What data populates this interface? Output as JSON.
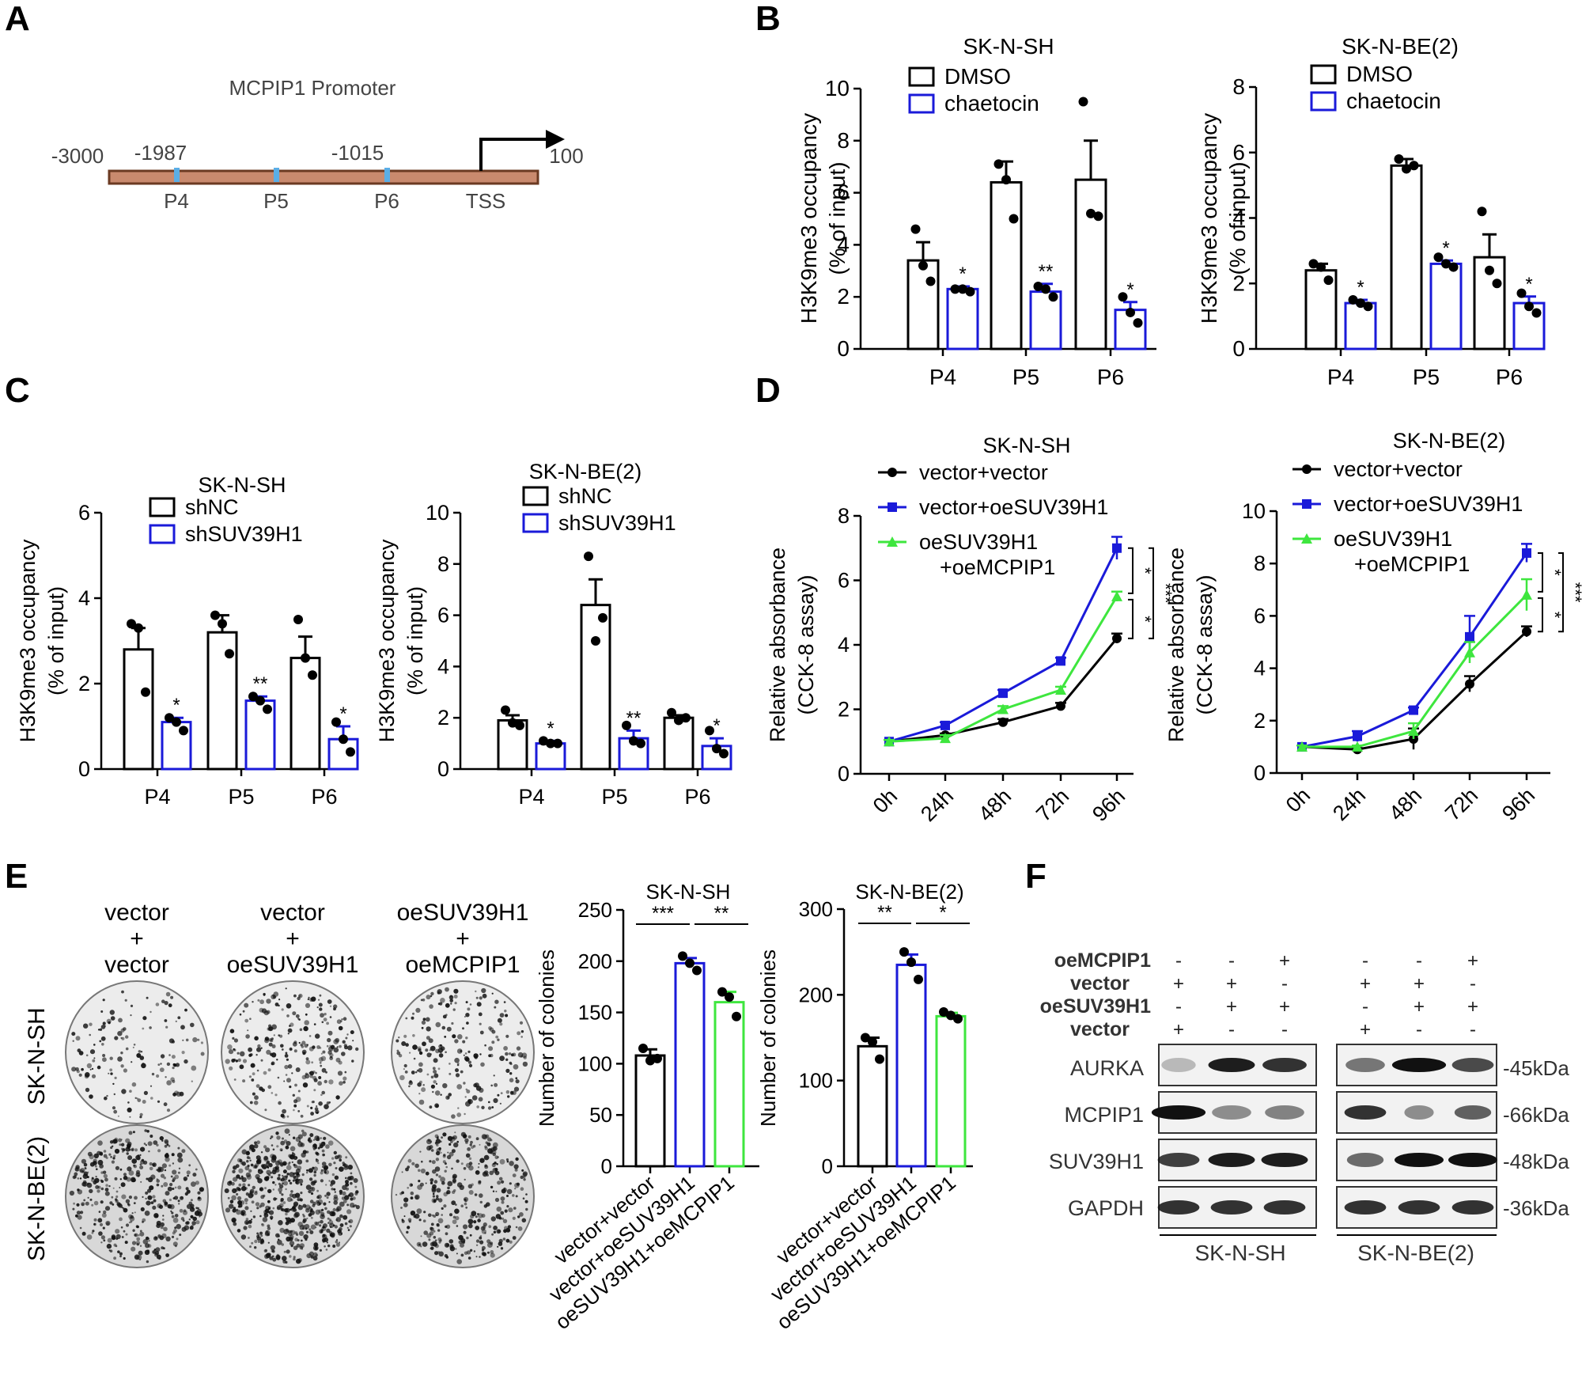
{
  "figure": {
    "panel_labels": [
      "A",
      "B",
      "C",
      "D",
      "E",
      "F"
    ]
  },
  "promoter": {
    "title": "MCPIP1 Promoter",
    "positions": [
      "-3000",
      "-1987",
      "-1015",
      "100"
    ],
    "sites": [
      "P4",
      "P5",
      "P6",
      "TSS"
    ]
  },
  "colors": {
    "black": "#000000",
    "blue": "#1a1ad9",
    "green": "#3ee63e",
    "site": "#5aaee6",
    "promoter_line": "#a0522d"
  },
  "colonies": {
    "col_labels": [
      [
        "vector",
        "+",
        "vector"
      ],
      [
        "vector",
        "+",
        "oeSUV39H1"
      ],
      [
        "oeSUV39H1",
        "+",
        "oeMCPIP1"
      ]
    ],
    "row_labels": [
      "SK-N-SH",
      "SK-N-BE(2)"
    ]
  },
  "western": {
    "condition_labels": [
      "oeMCPIP1",
      "vector",
      "oeSUV39H1",
      "vector"
    ],
    "signs": [
      [
        "-",
        "-",
        "+",
        "-",
        "-",
        "+"
      ],
      [
        "+",
        "+",
        "-",
        "+",
        "+",
        "-"
      ],
      [
        "-",
        "+",
        "+",
        "-",
        "+",
        "+"
      ],
      [
        "+",
        "-",
        "-",
        "+",
        "-",
        "-"
      ]
    ],
    "proteins": [
      "AURKA",
      "MCPIP1",
      "SUV39H1",
      "GAPDH"
    ],
    "sizes": [
      "-45kDa",
      "-66kDa",
      "-48kDa",
      "-36kDa"
    ],
    "cell_lines": [
      "SK-N-SH",
      "SK-N-BE(2)"
    ]
  },
  "chart_data": [
    {
      "id": "B-left",
      "type": "bar",
      "title": "SK-N-SH",
      "categories": [
        "P4",
        "P5",
        "P6"
      ],
      "ylabel": [
        "H3K9me3 occupancy",
        "(% of input)"
      ],
      "ylim": [
        0,
        10
      ],
      "yticks": [
        0,
        2,
        4,
        6,
        8,
        10
      ],
      "series": [
        {
          "name": "DMSO",
          "color": "#000000",
          "values": [
            3.4,
            6.4,
            6.5
          ],
          "err": [
            0.7,
            0.8,
            1.5
          ],
          "points": [
            [
              4.6,
              3.2,
              2.6
            ],
            [
              7.1,
              6.5,
              5.0
            ],
            [
              9.5,
              5.2,
              5.1
            ]
          ]
        },
        {
          "name": "chaetocin",
          "color": "#1a1ad9",
          "values": [
            2.3,
            2.2,
            1.5
          ],
          "err": [
            0.1,
            0.3,
            0.3
          ],
          "points": [
            [
              2.3,
              2.3,
              2.2
            ],
            [
              2.4,
              2.3,
              2.0
            ],
            [
              2.0,
              1.4,
              1.0
            ]
          ]
        }
      ],
      "sig": [
        {
          "series": 1,
          "cat": 0,
          "text": "*"
        },
        {
          "series": 1,
          "cat": 1,
          "text": "**"
        },
        {
          "series": 1,
          "cat": 2,
          "text": "*"
        }
      ],
      "legend": "top-left"
    },
    {
      "id": "B-right",
      "type": "bar",
      "title": "SK-N-BE(2)",
      "categories": [
        "P4",
        "P5",
        "P6"
      ],
      "ylabel": [
        "H3K9me3 occupancy",
        "(% of input)"
      ],
      "ylim": [
        0,
        8
      ],
      "yticks": [
        0,
        2,
        4,
        6,
        8
      ],
      "series": [
        {
          "name": "DMSO",
          "color": "#000000",
          "values": [
            2.4,
            5.6,
            2.8
          ],
          "err": [
            0.2,
            0.2,
            0.7
          ],
          "points": [
            [
              2.6,
              2.5,
              2.1
            ],
            [
              5.8,
              5.5,
              5.6
            ],
            [
              4.2,
              2.4,
              2.0
            ]
          ]
        },
        {
          "name": "chaetocin",
          "color": "#1a1ad9",
          "values": [
            1.4,
            2.6,
            1.4
          ],
          "err": [
            0.1,
            0.1,
            0.2
          ],
          "points": [
            [
              1.5,
              1.4,
              1.3
            ],
            [
              2.8,
              2.6,
              2.5
            ],
            [
              1.7,
              1.3,
              1.1
            ]
          ]
        }
      ],
      "sig": [
        {
          "series": 1,
          "cat": 0,
          "text": "*"
        },
        {
          "series": 1,
          "cat": 1,
          "text": "*"
        },
        {
          "series": 1,
          "cat": 2,
          "text": "*"
        }
      ],
      "legend": "top-left"
    },
    {
      "id": "C-left",
      "type": "bar",
      "title": "SK-N-SH",
      "categories": [
        "P4",
        "P5",
        "P6"
      ],
      "ylabel": [
        "H3K9me3 occupancy",
        "(% of input)"
      ],
      "ylim": [
        0,
        6
      ],
      "yticks": [
        0,
        2,
        4,
        6
      ],
      "series": [
        {
          "name": "shNC",
          "color": "#000000",
          "values": [
            2.8,
            3.2,
            2.6
          ],
          "err": [
            0.5,
            0.4,
            0.5
          ],
          "points": [
            [
              3.4,
              3.3,
              1.8
            ],
            [
              3.6,
              3.4,
              2.7
            ],
            [
              3.5,
              2.6,
              2.2
            ]
          ]
        },
        {
          "name": "shSUV39H1",
          "color": "#1a1ad9",
          "values": [
            1.1,
            1.6,
            0.7
          ],
          "err": [
            0.1,
            0.1,
            0.3
          ],
          "points": [
            [
              1.2,
              1.1,
              0.9
            ],
            [
              1.7,
              1.6,
              1.4
            ],
            [
              1.1,
              0.7,
              0.4
            ]
          ]
        }
      ],
      "sig": [
        {
          "series": 1,
          "cat": 0,
          "text": "*"
        },
        {
          "series": 1,
          "cat": 1,
          "text": "**"
        },
        {
          "series": 1,
          "cat": 2,
          "text": "*"
        }
      ],
      "legend": "top-left"
    },
    {
      "id": "C-right",
      "type": "bar",
      "title": "SK-N-BE(2)",
      "categories": [
        "P4",
        "P5",
        "P6"
      ],
      "ylabel": [
        "H3K9me3 occupancy",
        "(% of input)"
      ],
      "ylim": [
        0,
        10
      ],
      "yticks": [
        0,
        2,
        4,
        6,
        8,
        10
      ],
      "series": [
        {
          "name": "shNC",
          "color": "#000000",
          "values": [
            1.9,
            6.4,
            2.0
          ],
          "err": [
            0.2,
            1.0,
            0.1
          ],
          "points": [
            [
              2.3,
              1.8,
              1.7
            ],
            [
              8.3,
              5.0,
              5.9
            ],
            [
              2.2,
              1.9,
              2.0
            ]
          ]
        },
        {
          "name": "shSUV39H1",
          "color": "#1a1ad9",
          "values": [
            1.0,
            1.2,
            0.9
          ],
          "err": [
            0.1,
            0.3,
            0.3
          ],
          "points": [
            [
              1.1,
              1.0,
              1.0
            ],
            [
              1.7,
              1.1,
              1.0
            ],
            [
              1.5,
              0.8,
              0.6
            ]
          ]
        }
      ],
      "sig": [
        {
          "series": 1,
          "cat": 0,
          "text": "*"
        },
        {
          "series": 1,
          "cat": 1,
          "text": "**"
        },
        {
          "series": 1,
          "cat": 2,
          "text": "*"
        }
      ],
      "legend": "top-left"
    },
    {
      "id": "D-left",
      "type": "line",
      "title": "SK-N-SH",
      "x": [
        "0h",
        "24h",
        "48h",
        "72h",
        "96h"
      ],
      "ylabel": [
        "Relative absorbance",
        "(CCK-8 assay)"
      ],
      "ylim": [
        0,
        8
      ],
      "yticks": [
        0,
        2,
        4,
        6,
        8
      ],
      "series": [
        {
          "name": "vector+vector",
          "color": "#000000",
          "marker": "circle",
          "values": [
            1.0,
            1.2,
            1.6,
            2.1,
            4.2
          ],
          "err": [
            0.05,
            0.05,
            0.1,
            0.1,
            0.15
          ]
        },
        {
          "name": "vector+oeSUV39H1",
          "color": "#1a1ad9",
          "marker": "square",
          "values": [
            1.0,
            1.5,
            2.5,
            3.5,
            7.0
          ],
          "err": [
            0.05,
            0.1,
            0.1,
            0.1,
            0.35
          ]
        },
        {
          "name": "oeSUV39H1 +oeMCPIP1",
          "legend_lines": [
            "oeSUV39H1",
            "+oeMCPIP1"
          ],
          "color": "#3ee63e",
          "marker": "triangle",
          "values": [
            1.0,
            1.1,
            2.0,
            2.6,
            5.5
          ],
          "err": [
            0.05,
            0.1,
            0.1,
            0.1,
            0.15
          ]
        }
      ],
      "sig": [
        {
          "from": 1,
          "to": 2,
          "text": "*"
        },
        {
          "from": 2,
          "to": 0,
          "text": "*"
        },
        {
          "from": 1,
          "to": 0,
          "text": "***"
        }
      ],
      "legend": "top-left"
    },
    {
      "id": "D-right",
      "type": "line",
      "title": "SK-N-BE(2)",
      "x": [
        "0h",
        "24h",
        "48h",
        "72h",
        "96h"
      ],
      "ylabel": [
        "Relative absorbance",
        "(CCK-8 assay)"
      ],
      "ylim": [
        0,
        10
      ],
      "yticks": [
        0,
        2,
        4,
        6,
        8,
        10
      ],
      "series": [
        {
          "name": "vector+vector",
          "color": "#000000",
          "marker": "circle",
          "values": [
            1.0,
            0.9,
            1.3,
            3.4,
            5.4
          ],
          "err": [
            0.05,
            0.05,
            0.4,
            0.3,
            0.2
          ]
        },
        {
          "name": "vector+oeSUV39H1",
          "color": "#1a1ad9",
          "marker": "square",
          "values": [
            1.0,
            1.4,
            2.4,
            5.2,
            8.4
          ],
          "err": [
            0.05,
            0.2,
            0.1,
            0.8,
            0.35
          ]
        },
        {
          "name": "oeSUV39H1 +oeMCPIP1",
          "legend_lines": [
            "oeSUV39H1",
            "+oeMCPIP1"
          ],
          "color": "#3ee63e",
          "marker": "triangle",
          "values": [
            1.0,
            1.0,
            1.6,
            4.6,
            6.8
          ],
          "err": [
            0.05,
            0.05,
            0.3,
            0.4,
            0.6
          ]
        }
      ],
      "sig": [
        {
          "from": 1,
          "to": 2,
          "text": "*"
        },
        {
          "from": 2,
          "to": 0,
          "text": "*"
        },
        {
          "from": 1,
          "to": 0,
          "text": "***"
        }
      ],
      "legend": "top-left"
    },
    {
      "id": "E-left",
      "type": "bar",
      "title": "SK-N-SH",
      "categories": [
        "vector+vector",
        "vector+oeSUV39H1",
        "oeSUV39H1+oeMCPIP1"
      ],
      "ylabel": [
        "Number of colonies"
      ],
      "ylim": [
        0,
        250
      ],
      "yticks": [
        0,
        50,
        100,
        150,
        200,
        250
      ],
      "series": [
        {
          "name": "colonies",
          "colors": [
            "#000000",
            "#1a1ad9",
            "#3ee63e"
          ],
          "values": [
            108,
            198,
            160
          ],
          "err": [
            6,
            5,
            10
          ],
          "points": [
            [
              115,
              103,
              105
            ],
            [
              205,
              198,
              191
            ],
            [
              170,
              165,
              146
            ]
          ]
        }
      ],
      "brackets": [
        {
          "from": 0,
          "to": 1,
          "text": "***"
        },
        {
          "from": 1,
          "to": 2,
          "text": "**"
        }
      ]
    },
    {
      "id": "E-right",
      "type": "bar",
      "title": "SK-N-BE(2)",
      "categories": [
        "vector+vector",
        "vector+oeSUV39H1",
        "oeSUV39H1+oeMCPIP1"
      ],
      "ylabel": [
        "Number of colonies"
      ],
      "ylim": [
        0,
        300
      ],
      "yticks": [
        0,
        100,
        200,
        300
      ],
      "series": [
        {
          "name": "colonies",
          "colors": [
            "#000000",
            "#1a1ad9",
            "#3ee63e"
          ],
          "values": [
            140,
            235,
            175
          ],
          "err": [
            10,
            12,
            4
          ],
          "points": [
            [
              150,
              145,
              125
            ],
            [
              250,
              238,
              218
            ],
            [
              180,
              176,
              172
            ]
          ]
        }
      ],
      "brackets": [
        {
          "from": 0,
          "to": 1,
          "text": "**"
        },
        {
          "from": 1,
          "to": 2,
          "text": "*"
        }
      ]
    }
  ]
}
